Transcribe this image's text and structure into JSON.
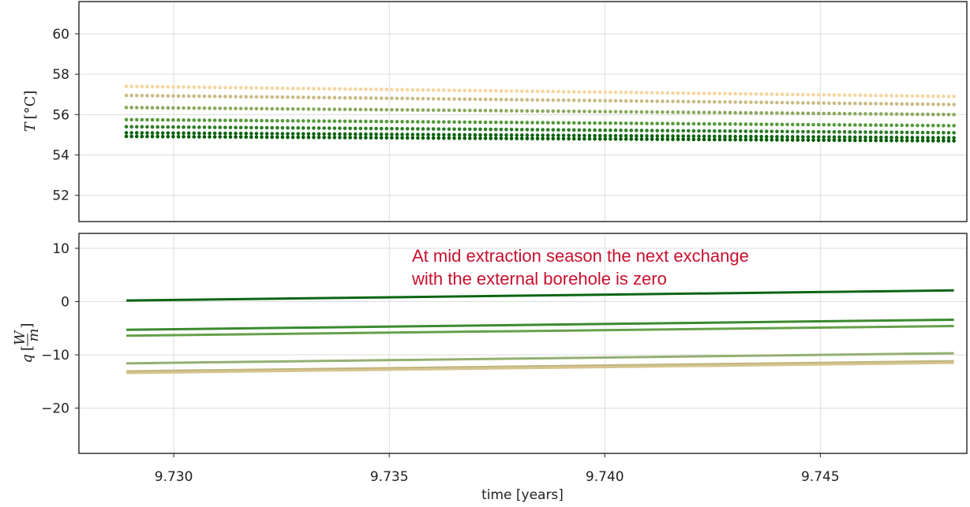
{
  "chart_data": [
    {
      "type": "scatter",
      "panel": "top",
      "ylabel_math": "T",
      "ylabel_unit": "°C",
      "ylim": [
        50.7,
        61.6
      ],
      "yticks": [
        52,
        54,
        56,
        58,
        60
      ],
      "xlim": [
        9.7278,
        9.7484
      ],
      "xticks": [
        9.73,
        9.735,
        9.74,
        9.745
      ],
      "grid": true,
      "series": [
        {
          "color": "#f5d5a0",
          "x": [
            9.7289,
            9.7481
          ],
          "y": [
            57.4,
            56.9
          ]
        },
        {
          "color": "#c9bb85",
          "x": [
            9.7289,
            9.7481
          ],
          "y": [
            56.95,
            56.5
          ]
        },
        {
          "color": "#8aaa5e",
          "x": [
            9.7289,
            9.7481
          ],
          "y": [
            56.35,
            56.0
          ]
        },
        {
          "color": "#559a3c",
          "x": [
            9.7289,
            9.7481
          ],
          "y": [
            55.75,
            55.45
          ]
        },
        {
          "color": "#2c7d25",
          "x": [
            9.7289,
            9.7481
          ],
          "y": [
            55.4,
            55.1
          ]
        },
        {
          "color": "#0e6612",
          "x": [
            9.7289,
            9.7481
          ],
          "y": [
            55.1,
            54.85
          ]
        },
        {
          "color": "#005c00",
          "x": [
            9.7289,
            9.7481
          ],
          "y": [
            54.92,
            54.7
          ]
        }
      ]
    },
    {
      "type": "line",
      "panel": "bottom",
      "ylabel_math": "q",
      "ylabel_frac_num": "W",
      "ylabel_frac_den": "m",
      "xlabel": "time [years]",
      "ylim": [
        -28.5,
        12.8
      ],
      "yticks": [
        10,
        0,
        -10,
        -20
      ],
      "ytick_labels": [
        "10",
        "0",
        "−10",
        "−20"
      ],
      "xlim": [
        9.7278,
        9.7484
      ],
      "xticks": [
        9.73,
        9.735,
        9.74,
        9.745
      ],
      "xtick_labels": [
        "9.730",
        "9.735",
        "9.740",
        "9.745"
      ],
      "grid": true,
      "series": [
        {
          "color": "#0b6512",
          "x": [
            9.7289,
            9.7481
          ],
          "y": [
            0.2,
            2.1
          ]
        },
        {
          "color": "#3a8a2f",
          "x": [
            9.7289,
            9.7481
          ],
          "y": [
            -5.3,
            -3.4
          ]
        },
        {
          "color": "#66a04a",
          "x": [
            9.7289,
            9.7481
          ],
          "y": [
            -6.4,
            -4.6
          ]
        },
        {
          "color": "#93b070",
          "x": [
            9.7289,
            9.7481
          ],
          "y": [
            -11.6,
            -9.7
          ]
        },
        {
          "color": "#c0b680",
          "x": [
            9.7289,
            9.7481
          ],
          "y": [
            -13.1,
            -11.2
          ]
        },
        {
          "color": "#d6c48f",
          "x": [
            9.7289,
            9.7481
          ],
          "y": [
            -13.4,
            -11.5
          ]
        }
      ],
      "annotation": {
        "lines": [
          "At mid extraction season the next exchange",
          "with the external borehole is zero"
        ],
        "color": "#c8102e"
      }
    }
  ]
}
